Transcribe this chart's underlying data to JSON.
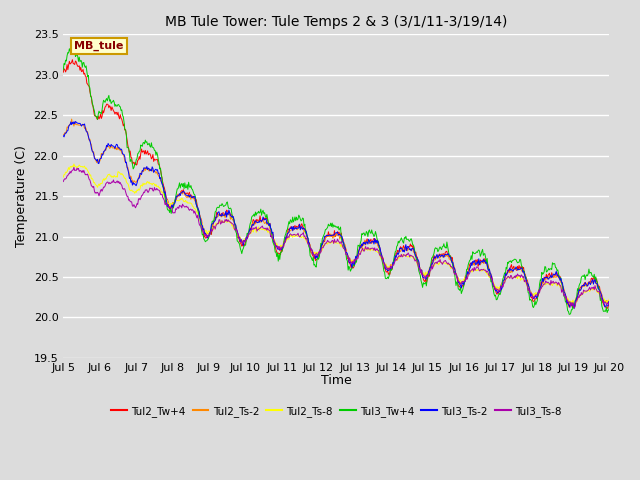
{
  "title": "MB Tule Tower: Tule Temps 2 & 3 (3/1/11-3/19/14)",
  "xlabel": "Time",
  "ylabel": "Temperature (C)",
  "ylim": [
    19.5,
    23.5
  ],
  "xlim": [
    0,
    15
  ],
  "background_color": "#dcdcdc",
  "plot_bg_color": "#dcdcdc",
  "x_tick_labels": [
    "Jul 5",
    "Jul 6",
    "Jul 7",
    "Jul 8",
    "Jul 9",
    "Jul 10",
    "Jul 11",
    "Jul 12",
    "Jul 13",
    "Jul 14",
    "Jul 15",
    "Jul 16",
    "Jul 17",
    "Jul 18",
    "Jul 19",
    "Jul 20"
  ],
  "x_tick_positions": [
    0,
    1,
    2,
    3,
    4,
    5,
    6,
    7,
    8,
    9,
    10,
    11,
    12,
    13,
    14,
    15
  ],
  "y_ticks": [
    19.5,
    20.0,
    20.5,
    21.0,
    21.5,
    22.0,
    22.5,
    23.0,
    23.5
  ],
  "legend_labels": [
    "Tul2_Tw+4",
    "Tul2_Ts-2",
    "Tul2_Ts-8",
    "Tul3_Tw+4",
    "Tul3_Ts-2",
    "Tul3_Ts-8"
  ],
  "series_colors": [
    "#ff0000",
    "#ff8800",
    "#ffff00",
    "#00cc00",
    "#0000ff",
    "#aa00aa"
  ],
  "annotation_text": "MB_tule",
  "annotation_bg": "#ffffcc",
  "annotation_border": "#cc9900",
  "annotation_text_color": "#880000",
  "linewidth": 0.7
}
